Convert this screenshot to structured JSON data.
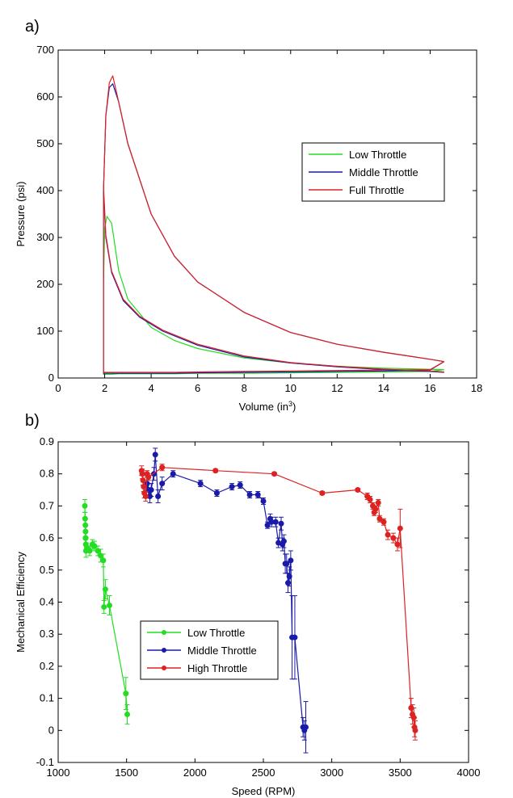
{
  "panels": [
    {
      "label": "a)"
    },
    {
      "label": "b)"
    }
  ],
  "chart_data": [
    {
      "type": "line",
      "xlabel": "Volume (in",
      "xlabel_sup": "3",
      "xlabel_close": ")",
      "ylabel": "Pressure (psi)",
      "xlim": [
        0,
        18
      ],
      "ylim": [
        0,
        700
      ],
      "xticks": [
        0,
        2,
        4,
        6,
        8,
        10,
        12,
        14,
        16,
        18
      ],
      "yticks": [
        0,
        100,
        200,
        300,
        400,
        500,
        600,
        700
      ],
      "grid": false,
      "legend_position": "middle-right",
      "series": [
        {
          "name": "Low Throttle",
          "color": "#22dd22",
          "x": [
            16.6,
            14,
            12,
            10,
            8,
            6,
            5,
            4,
            3,
            2.6,
            2.3,
            2.1,
            2.0,
            1.95,
            1.95,
            2.0,
            2.1,
            2.3,
            2.6,
            3,
            4,
            5,
            6,
            8,
            10,
            12,
            14,
            16,
            16.6
          ],
          "y": [
            18,
            21,
            25,
            32,
            43,
            63,
            80,
            108,
            168,
            230,
            330,
            345,
            320,
            200,
            8,
            8,
            8,
            8,
            9,
            9,
            9,
            9,
            10,
            10,
            11,
            12,
            13,
            14,
            18
          ]
        },
        {
          "name": "Middle Throttle",
          "color": "#1a1aaa",
          "x": [
            16.6,
            16,
            14,
            12,
            10,
            8,
            6,
            5,
            4,
            3,
            2.6,
            2.35,
            2.2,
            2.05,
            1.95,
            1.95,
            2.0,
            2.1,
            2.3,
            2.6,
            3,
            4,
            5,
            6,
            8,
            10,
            12,
            14,
            16,
            16.6
          ],
          "y": [
            35,
            40,
            55,
            72,
            97,
            140,
            205,
            260,
            350,
            500,
            590,
            628,
            620,
            560,
            400,
            10,
            10,
            10,
            10,
            10,
            10,
            10,
            10,
            11,
            12,
            13,
            14,
            15,
            17,
            35
          ]
        },
        {
          "name": "Full Throttle",
          "color": "#dd2222",
          "x": [
            16.6,
            16,
            14,
            12,
            10,
            8,
            6,
            5,
            4,
            3,
            2.6,
            2.35,
            2.2,
            2.05,
            1.95,
            1.95,
            2.0,
            2.1,
            2.3,
            2.6,
            3,
            4,
            5,
            6,
            8,
            10,
            12,
            14,
            16,
            16.6
          ],
          "y": [
            35,
            40,
            55,
            72,
            97,
            140,
            205,
            260,
            350,
            500,
            590,
            645,
            630,
            560,
            400,
            12,
            12,
            12,
            12,
            12,
            12,
            12,
            12,
            13,
            14,
            15,
            16,
            17,
            18,
            35
          ]
        },
        {
          "name": "Middle Throttle",
          "color": "#1a1aaa",
          "x": [
            1.95,
            2.05,
            2.3,
            2.8,
            3.5,
            4.5,
            6,
            8,
            10,
            12,
            14,
            16,
            16.6
          ],
          "y": [
            400,
            300,
            225,
            165,
            130,
            100,
            70,
            45,
            32,
            24,
            18,
            14,
            12
          ]
        },
        {
          "name": "Full Throttle",
          "color": "#dd2222",
          "x": [
            1.95,
            2.05,
            2.3,
            2.8,
            3.5,
            4.5,
            6,
            8,
            10,
            12,
            14,
            16,
            16.6
          ],
          "y": [
            410,
            305,
            228,
            168,
            132,
            102,
            72,
            47,
            33,
            25,
            19,
            15,
            13
          ]
        }
      ],
      "legend": [
        {
          "name": "Low Throttle",
          "color": "#22dd22"
        },
        {
          "name": "Middle Throttle",
          "color": "#1a1aaa"
        },
        {
          "name": "Full Throttle",
          "color": "#dd2222"
        }
      ]
    },
    {
      "type": "line",
      "xlabel": "Speed (RPM)",
      "ylabel": "Mechanical Efficiency",
      "xlim": [
        1000,
        4000
      ],
      "ylim": [
        -0.1,
        0.9
      ],
      "xticks": [
        1000,
        1500,
        2000,
        2500,
        3000,
        3500,
        4000
      ],
      "yticks": [
        -0.1,
        0,
        0.1,
        0.2,
        0.3,
        0.4,
        0.5,
        0.6,
        0.7,
        0.8,
        0.9
      ],
      "ytick_labels": [
        "-0.1",
        "0",
        "0.1",
        "0.2",
        "0.3",
        "0.4",
        "0.5",
        "0.6",
        "0.7",
        "0.8",
        "0.9"
      ],
      "grid": false,
      "legend_position": "bottom-left",
      "series": [
        {
          "name": "Low Throttle",
          "color": "#22dd22",
          "x": [
            1195,
            1197,
            1199,
            1200,
            1201,
            1202,
            1203,
            1200,
            1210,
            1230,
            1250,
            1265,
            1290,
            1310,
            1330,
            1335,
            1345,
            1375,
            1495,
            1505
          ],
          "y": [
            0.7,
            0.66,
            0.64,
            0.62,
            0.6,
            0.58,
            0.56,
            0.6,
            0.57,
            0.56,
            0.58,
            0.575,
            0.56,
            0.545,
            0.53,
            0.385,
            0.44,
            0.39,
            0.115,
            0.05
          ],
          "err": [
            0.02,
            0.02,
            0.02,
            0.02,
            0.02,
            0.02,
            0.02,
            0.02,
            0.015,
            0.015,
            0.015,
            0.015,
            0.015,
            0.02,
            0.02,
            0.02,
            0.03,
            0.03,
            0.05,
            0.03
          ]
        },
        {
          "name": "Middle Throttle",
          "color": "#1a1aaa",
          "x": [
            1650,
            1660,
            1670,
            1680,
            1700,
            1710,
            1730,
            1760,
            1840,
            2040,
            2160,
            2270,
            2330,
            2400,
            2460,
            2500,
            2530,
            2550,
            2560,
            2590,
            2610,
            2630,
            2640,
            2650,
            2660,
            2670,
            2680,
            2690,
            2700,
            2710,
            2730,
            2790,
            2800,
            2810
          ],
          "y": [
            0.77,
            0.75,
            0.73,
            0.75,
            0.8,
            0.86,
            0.73,
            0.77,
            0.8,
            0.77,
            0.74,
            0.76,
            0.765,
            0.735,
            0.735,
            0.715,
            0.64,
            0.66,
            0.65,
            0.65,
            0.585,
            0.645,
            0.58,
            0.59,
            0.52,
            0.52,
            0.46,
            0.48,
            0.53,
            0.29,
            0.29,
            0.01,
            0.0,
            0.01
          ],
          "err": [
            0.02,
            0.02,
            0.02,
            0.02,
            0.02,
            0.02,
            0.02,
            0.02,
            0.01,
            0.01,
            0.01,
            0.01,
            0.01,
            0.01,
            0.01,
            0.01,
            0.01,
            0.015,
            0.015,
            0.015,
            0.015,
            0.02,
            0.02,
            0.02,
            0.03,
            0.03,
            0.03,
            0.03,
            0.03,
            0.13,
            0.13,
            0.03,
            0.03,
            0.08
          ]
        },
        {
          "name": "High Throttle",
          "color": "#dd2222",
          "x": [
            1610,
            1615,
            1620,
            1625,
            1630,
            1640,
            1650,
            1660,
            1760,
            2150,
            2580,
            2930,
            3190,
            3260,
            3280,
            3300,
            3310,
            3320,
            3340,
            3350,
            3380,
            3410,
            3450,
            3480,
            3500,
            3580,
            3590,
            3600,
            3605,
            3610
          ],
          "y": [
            0.81,
            0.8,
            0.78,
            0.76,
            0.74,
            0.73,
            0.8,
            0.79,
            0.82,
            0.81,
            0.8,
            0.74,
            0.75,
            0.73,
            0.72,
            0.7,
            0.68,
            0.69,
            0.71,
            0.66,
            0.65,
            0.61,
            0.6,
            0.58,
            0.63,
            0.07,
            0.05,
            0.04,
            0.01,
            0.0
          ],
          "err": [
            0.015,
            0.015,
            0.015,
            0.015,
            0.015,
            0.015,
            0.01,
            0.01,
            0.01,
            0.005,
            0.005,
            0.005,
            0.005,
            0.01,
            0.01,
            0.01,
            0.01,
            0.01,
            0.01,
            0.01,
            0.01,
            0.015,
            0.015,
            0.02,
            0.06,
            0.03,
            0.03,
            0.03,
            0.03,
            0.03
          ]
        }
      ],
      "legend": [
        {
          "name": "Low Throttle",
          "color": "#22dd22"
        },
        {
          "name": "Middle Throttle",
          "color": "#1a1aaa"
        },
        {
          "name": "High Throttle",
          "color": "#dd2222"
        }
      ]
    }
  ]
}
